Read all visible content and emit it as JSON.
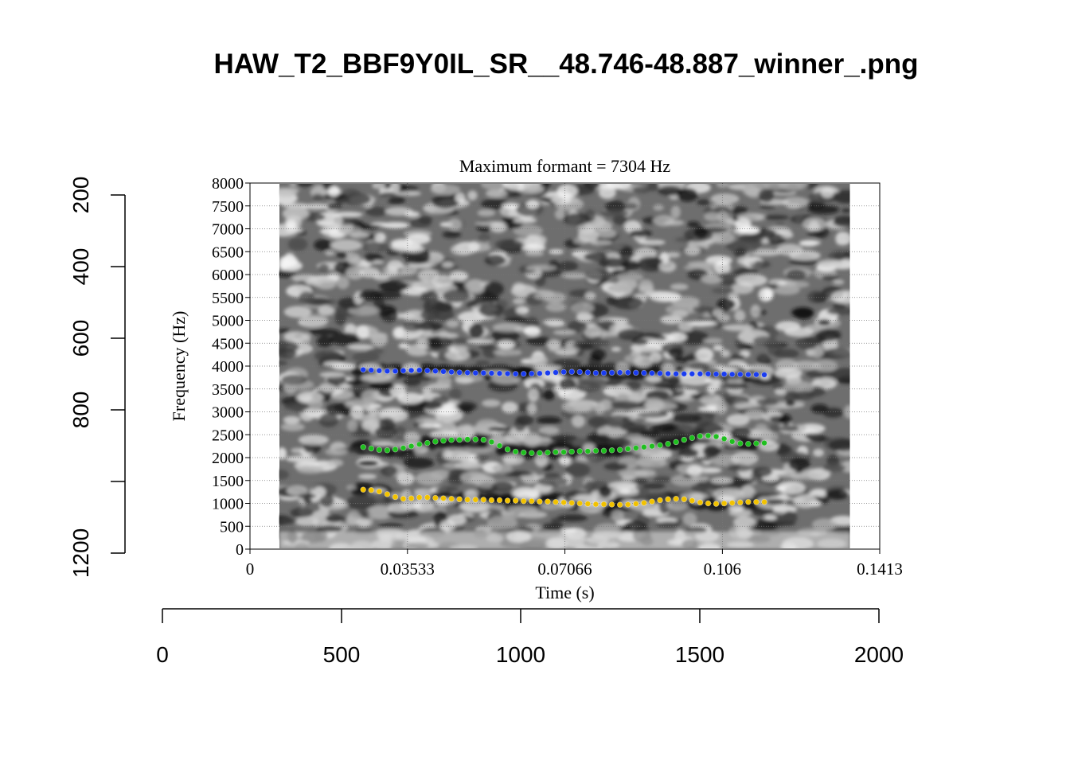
{
  "title": "HAW_T2_BBF9Y0IL_SR__48.746-48.887_winner_.png",
  "colors": {
    "background": "#ffffff",
    "axis": "#000000",
    "spectrogram_dark": "#141414",
    "spectrogram_light": "#e8e8e8",
    "f1": "#f2c200",
    "f2": "#1fbf1f",
    "f3": "#1a3cf0"
  },
  "chart_data": [
    {
      "type": "scatter",
      "title": "Maximum formant  =  7304 Hz",
      "xlabel": "Time (s)",
      "ylabel": "Frequency (Hz)",
      "xlim": [
        0,
        0.1413
      ],
      "ylim": [
        0,
        8000
      ],
      "x_ticks": [
        "0",
        "0.03533",
        "0.07066",
        "0.106",
        "0.1413"
      ],
      "y_ticks": [
        "0",
        "500",
        "1000",
        "1500",
        "2000",
        "2500",
        "3000",
        "3500",
        "4000",
        "4500",
        "5000",
        "5500",
        "6000",
        "6500",
        "7000",
        "7500",
        "8000"
      ],
      "grid": true,
      "background": "spectrogram",
      "spectrogram_time_range": [
        0.0066,
        0.1346
      ],
      "series": [
        {
          "color_key": "f3",
          "x": [
            0.0254,
            0.0272,
            0.029,
            0.0308,
            0.0326,
            0.0344,
            0.0362,
            0.038,
            0.0398,
            0.0416,
            0.0434,
            0.0452,
            0.047,
            0.0488,
            0.0506,
            0.0524,
            0.0542,
            0.056,
            0.0578,
            0.0596,
            0.0614,
            0.0632,
            0.065,
            0.0668,
            0.0686,
            0.0704,
            0.0722,
            0.074,
            0.0758,
            0.0776,
            0.0794,
            0.0812,
            0.083,
            0.0848,
            0.0866,
            0.0884,
            0.0902,
            0.092,
            0.0938,
            0.0956,
            0.0974,
            0.0992,
            0.101,
            0.1028,
            0.1046,
            0.1064,
            0.1082,
            0.11,
            0.1118,
            0.1136,
            0.1154
          ],
          "y": [
            3920,
            3910,
            3900,
            3890,
            3890,
            3900,
            3905,
            3910,
            3900,
            3890,
            3880,
            3870,
            3860,
            3855,
            3850,
            3850,
            3845,
            3840,
            3835,
            3830,
            3830,
            3835,
            3840,
            3850,
            3860,
            3870,
            3875,
            3870,
            3860,
            3850,
            3850,
            3855,
            3860,
            3860,
            3855,
            3850,
            3845,
            3840,
            3835,
            3830,
            3830,
            3830,
            3830,
            3830,
            3825,
            3825,
            3820,
            3820,
            3815,
            3815,
            3810
          ]
        },
        {
          "color_key": "f2",
          "x": [
            0.0254,
            0.0272,
            0.029,
            0.0308,
            0.0326,
            0.0344,
            0.0362,
            0.038,
            0.0398,
            0.0416,
            0.0434,
            0.0452,
            0.047,
            0.0488,
            0.0506,
            0.0524,
            0.0542,
            0.056,
            0.0578,
            0.0596,
            0.0614,
            0.0632,
            0.065,
            0.0668,
            0.0686,
            0.0704,
            0.0722,
            0.074,
            0.0758,
            0.0776,
            0.0794,
            0.0812,
            0.083,
            0.0848,
            0.0866,
            0.0884,
            0.0902,
            0.092,
            0.0938,
            0.0956,
            0.0974,
            0.0992,
            0.101,
            0.1028,
            0.1046,
            0.1064,
            0.1082,
            0.11,
            0.1118,
            0.1136,
            0.1154
          ],
          "y": [
            2230,
            2200,
            2170,
            2160,
            2180,
            2210,
            2250,
            2290,
            2320,
            2350,
            2370,
            2385,
            2390,
            2400,
            2400,
            2390,
            2340,
            2260,
            2180,
            2130,
            2110,
            2100,
            2100,
            2110,
            2120,
            2120,
            2130,
            2140,
            2140,
            2150,
            2150,
            2160,
            2170,
            2190,
            2210,
            2230,
            2250,
            2270,
            2300,
            2340,
            2390,
            2430,
            2470,
            2480,
            2460,
            2410,
            2350,
            2310,
            2300,
            2310,
            2320
          ]
        },
        {
          "color_key": "f1",
          "x": [
            0.0254,
            0.0272,
            0.029,
            0.0308,
            0.0326,
            0.0344,
            0.0362,
            0.038,
            0.0398,
            0.0416,
            0.0434,
            0.0452,
            0.047,
            0.0488,
            0.0506,
            0.0524,
            0.0542,
            0.056,
            0.0578,
            0.0596,
            0.0614,
            0.0632,
            0.065,
            0.0668,
            0.0686,
            0.0704,
            0.0722,
            0.074,
            0.0758,
            0.0776,
            0.0794,
            0.0812,
            0.083,
            0.0848,
            0.0866,
            0.0884,
            0.0902,
            0.092,
            0.0938,
            0.0956,
            0.0974,
            0.0992,
            0.101,
            0.1028,
            0.1046,
            0.1064,
            0.1082,
            0.11,
            0.1118,
            0.1136,
            0.1154
          ],
          "y": [
            1300,
            1290,
            1260,
            1200,
            1140,
            1100,
            1110,
            1130,
            1130,
            1120,
            1110,
            1100,
            1090,
            1080,
            1080,
            1080,
            1070,
            1070,
            1060,
            1060,
            1050,
            1050,
            1040,
            1040,
            1030,
            1020,
            1010,
            1000,
            990,
            980,
            980,
            975,
            970,
            975,
            990,
            1010,
            1040,
            1070,
            1090,
            1100,
            1090,
            1060,
            1020,
            1000,
            990,
            1000,
            1010,
            1020,
            1030,
            1030,
            1030
          ]
        }
      ]
    },
    {
      "type": "line",
      "title": "",
      "role": "outer-axes",
      "x_ticks": [
        "0",
        "500",
        "1000",
        "1500",
        "2000"
      ],
      "xlim": [
        0,
        2000
      ],
      "y_ticks": [
        "200",
        "400",
        "600",
        "800",
        "1200"
      ],
      "ylim": [
        200,
        1200
      ]
    }
  ]
}
